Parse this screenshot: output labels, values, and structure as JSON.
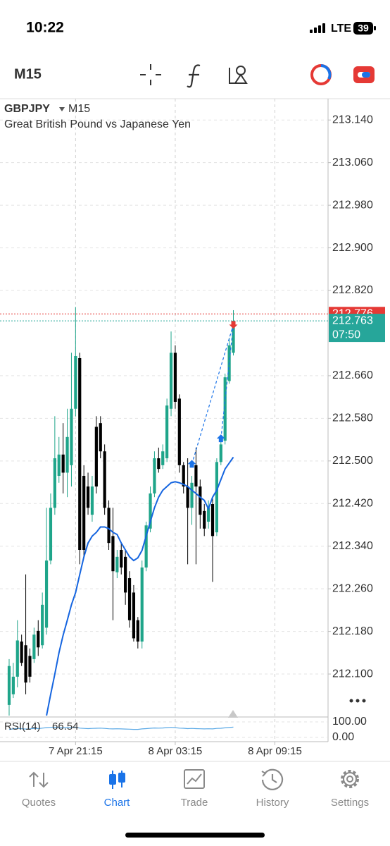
{
  "status_bar": {
    "time": "10:22",
    "network": "LTE",
    "battery": "39"
  },
  "toolbar": {
    "timeframe": "M15"
  },
  "chart_data": {
    "type": "candlestick",
    "symbol": "GBPJPY",
    "timeframe": "M15",
    "title": "Great British Pound vs Japanese Yen",
    "up_color": "#1fa58a",
    "down_color": "#000000",
    "open": [
      212.042,
      212.062,
      212.095,
      212.161,
      212.154,
      212.134,
      212.128,
      212.181,
      212.154,
      212.187,
      212.313,
      212.412,
      212.472,
      212.512,
      212.478,
      212.492,
      212.598,
      212.693,
      212.472,
      212.452,
      212.399,
      212.564,
      212.571,
      212.518,
      212.412,
      212.359,
      212.291,
      212.333,
      212.32,
      212.28,
      212.253,
      212.201,
      212.161,
      212.3,
      212.373,
      212.439,
      212.505,
      212.492,
      212.505,
      212.598,
      212.703,
      212.617,
      212.492,
      212.452,
      212.412,
      212.492,
      212.452,
      212.406,
      212.386,
      212.419,
      212.366,
      212.498,
      212.538,
      212.65,
      212.703
    ],
    "high": [
      212.128,
      212.121,
      212.201,
      212.174,
      212.287,
      212.148,
      212.187,
      212.201,
      212.253,
      212.412,
      212.439,
      212.584,
      212.545,
      212.571,
      212.598,
      212.703,
      212.789,
      212.703,
      212.492,
      212.478,
      212.472,
      212.584,
      212.584,
      212.531,
      212.426,
      212.412,
      212.333,
      212.346,
      212.333,
      212.293,
      212.267,
      212.207,
      212.313,
      212.386,
      212.452,
      212.518,
      212.525,
      212.531,
      212.617,
      212.743,
      212.717,
      212.625,
      212.498,
      212.505,
      212.472,
      212.525,
      212.465,
      212.419,
      212.426,
      212.432,
      212.505,
      212.545,
      212.664,
      212.731,
      212.783
    ],
    "low": [
      212.022,
      212.055,
      212.075,
      212.115,
      212.062,
      212.084,
      212.121,
      212.134,
      212.148,
      212.174,
      212.306,
      212.399,
      212.459,
      212.439,
      212.432,
      212.452,
      212.584,
      212.306,
      212.32,
      212.399,
      212.386,
      212.439,
      212.505,
      212.399,
      212.333,
      212.201,
      212.28,
      212.287,
      212.23,
      212.187,
      212.161,
      212.148,
      212.148,
      212.293,
      212.366,
      212.432,
      212.478,
      212.485,
      212.498,
      212.584,
      212.598,
      212.478,
      212.439,
      212.306,
      212.38,
      212.306,
      212.373,
      212.359,
      212.373,
      212.273,
      212.359,
      212.492,
      212.531,
      212.645,
      212.698
    ],
    "close": [
      212.115,
      212.095,
      212.163,
      212.121,
      212.084,
      212.095,
      212.174,
      212.15,
      212.23,
      212.313,
      212.412,
      212.505,
      212.512,
      212.478,
      212.545,
      212.598,
      212.697,
      212.333,
      212.333,
      212.412,
      212.452,
      212.452,
      212.518,
      212.412,
      212.346,
      212.293,
      212.32,
      212.3,
      212.253,
      212.201,
      212.167,
      212.161,
      212.3,
      212.379,
      212.439,
      212.505,
      212.485,
      212.518,
      212.604,
      212.703,
      212.611,
      212.492,
      212.452,
      212.412,
      212.459,
      212.452,
      212.399,
      212.373,
      212.412,
      212.359,
      212.498,
      212.531,
      212.657,
      212.717,
      212.763
    ],
    "ma": {
      "color": "#1565e0",
      "values": [
        null,
        null,
        null,
        null,
        null,
        null,
        null,
        null,
        null,
        212.022,
        212.062,
        212.1,
        212.14,
        212.173,
        212.201,
        212.23,
        212.253,
        212.287,
        212.32,
        212.346,
        212.359,
        212.366,
        212.376,
        212.376,
        212.373,
        212.366,
        212.362,
        212.346,
        212.333,
        212.32,
        212.313,
        212.318,
        212.332,
        212.359,
        212.386,
        212.412,
        212.432,
        212.445,
        212.452,
        212.459,
        212.461,
        212.459,
        212.456,
        212.452,
        212.445,
        212.439,
        212.432,
        212.426,
        212.41,
        212.432,
        212.445,
        212.465,
        212.485,
        212.496,
        212.507
      ]
    },
    "ylim": [
      212.022,
      213.18
    ],
    "yticks": [
      {
        "value": 213.14,
        "label": "213.140"
      },
      {
        "value": 213.06,
        "label": "213.060"
      },
      {
        "value": 212.98,
        "label": "212.980"
      },
      {
        "value": 212.9,
        "label": "212.900"
      },
      {
        "value": 212.82,
        "label": "212.820"
      },
      {
        "value": 212.66,
        "label": "212.660"
      },
      {
        "value": 212.58,
        "label": "212.580"
      },
      {
        "value": 212.5,
        "label": "212.500"
      },
      {
        "value": 212.42,
        "label": "212.420"
      },
      {
        "value": 212.34,
        "label": "212.340"
      },
      {
        "value": 212.26,
        "label": "212.260"
      },
      {
        "value": 212.18,
        "label": "212.180"
      },
      {
        "value": 212.1,
        "label": "212.100"
      }
    ],
    "xlim": [
      -2.2,
      76.8
    ],
    "xticks": [
      {
        "value": 16,
        "label": "7 Apr 21:15"
      },
      {
        "value": 40,
        "label": "8 Apr 03:15"
      },
      {
        "value": 64,
        "label": "8 Apr 09:15"
      }
    ],
    "grid": true,
    "ask": 212.776,
    "ask_color": "#e53935",
    "bid": 212.763,
    "bid_color": "#26a69a",
    "countdown": "07:50",
    "buy_markers": [
      {
        "x": 44,
        "y": 212.494
      },
      {
        "x": 51,
        "y": 212.542
      }
    ],
    "sell_markers": [
      {
        "x": 54,
        "y": 212.756
      }
    ],
    "rsi": {
      "label": "RSI(14)",
      "color": "#5aa9e6",
      "ylim": [
        0,
        100
      ],
      "yticks": [
        {
          "value": 100,
          "label": "100.00"
        },
        {
          "value": 0,
          "label": "0.00"
        }
      ],
      "values": [
        52,
        55,
        58,
        56,
        54,
        55,
        58,
        57,
        60,
        63,
        65,
        66,
        64,
        62,
        63,
        65,
        66,
        60,
        58,
        57,
        58,
        59,
        60,
        58,
        56,
        55,
        56,
        55,
        54,
        53,
        52,
        52,
        55,
        57,
        59,
        61,
        60,
        61,
        63,
        65,
        63,
        60,
        59,
        57,
        58,
        57,
        56,
        55,
        56,
        55,
        58,
        59,
        62,
        64,
        66.54
      ]
    }
  },
  "tabs": [
    {
      "label": "Quotes"
    },
    {
      "label": "Chart"
    },
    {
      "label": "Trade"
    },
    {
      "label": "History"
    },
    {
      "label": "Settings"
    }
  ]
}
